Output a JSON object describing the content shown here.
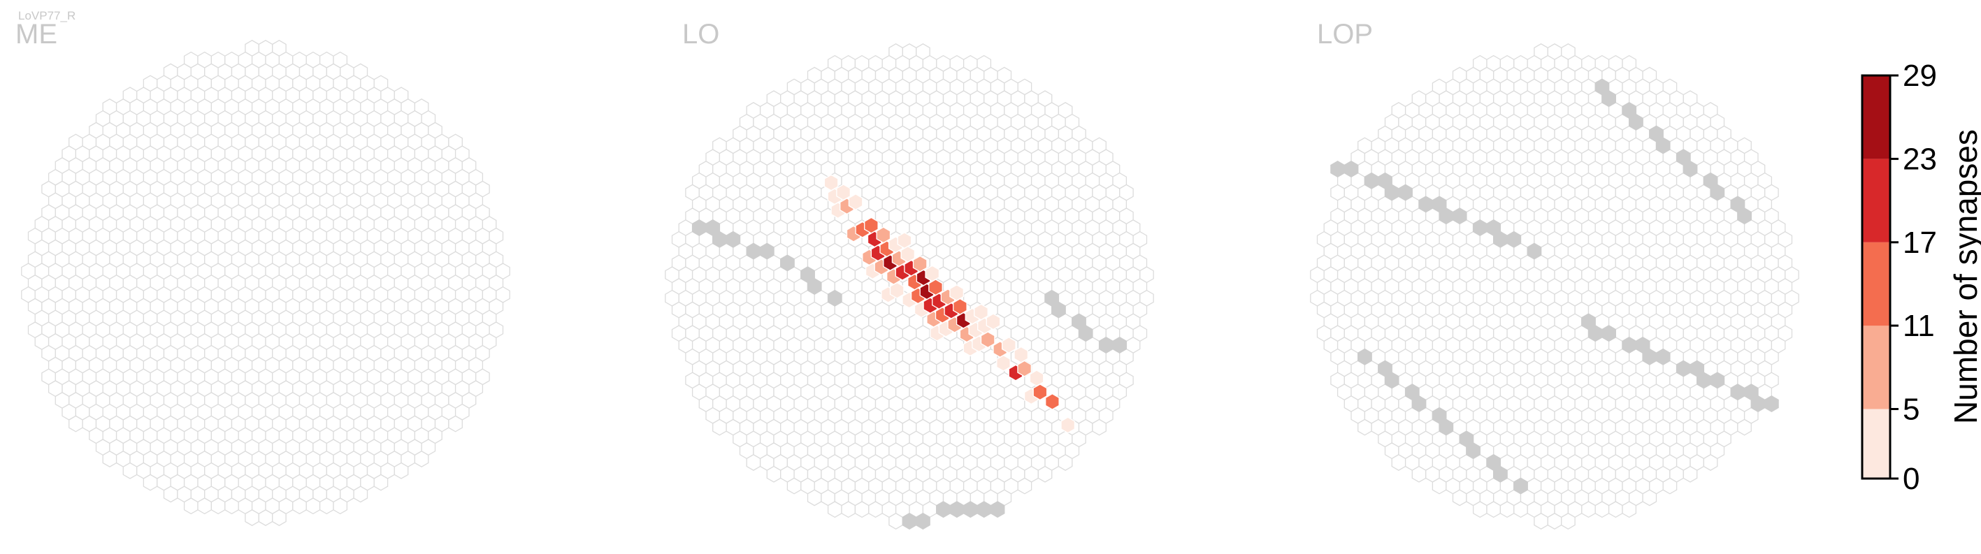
{
  "chart_data": {
    "type": "heatmap",
    "cell_type_label": "LoVP77_R",
    "panels": [
      {
        "title": "ME",
        "counts": [],
        "boundary": []
      },
      {
        "title": "LO",
        "counts": [
          [
            -2,
            4,
            2
          ],
          [
            -1,
            4,
            4
          ],
          [
            0,
            4,
            4
          ],
          [
            1,
            5,
            6
          ],
          [
            2,
            6,
            9
          ],
          [
            3,
            6,
            4
          ],
          [
            4,
            7,
            4
          ],
          [
            -2,
            5,
            3
          ],
          [
            -1,
            5,
            6
          ],
          [
            0,
            6,
            13
          ],
          [
            1,
            7,
            18
          ],
          [
            2,
            7,
            11
          ],
          [
            3,
            8,
            4
          ],
          [
            -2,
            6,
            4
          ],
          [
            -1,
            7,
            12
          ],
          [
            0,
            7,
            20
          ],
          [
            1,
            8,
            25
          ],
          [
            2,
            8,
            9
          ],
          [
            3,
            9,
            3
          ],
          [
            -1,
            8,
            9
          ],
          [
            0,
            8,
            16
          ],
          [
            1,
            9,
            22
          ],
          [
            2,
            10,
            13
          ],
          [
            3,
            10,
            3
          ],
          [
            4,
            11,
            2
          ],
          [
            -1,
            9,
            5
          ],
          [
            0,
            9,
            11
          ],
          [
            1,
            10,
            14
          ],
          [
            2,
            11,
            20
          ],
          [
            3,
            11,
            6
          ],
          [
            -1,
            10,
            3
          ],
          [
            0,
            10,
            18
          ],
          [
            1,
            11,
            27
          ],
          [
            2,
            12,
            13
          ],
          [
            3,
            12,
            5
          ],
          [
            -2,
            10,
            2
          ],
          [
            -1,
            11,
            8
          ],
          [
            0,
            11,
            26
          ],
          [
            1,
            12,
            22
          ],
          [
            2,
            13,
            8
          ],
          [
            -1,
            12,
            4
          ],
          [
            0,
            12,
            14
          ],
          [
            1,
            13,
            21
          ],
          [
            2,
            14,
            7
          ],
          [
            3,
            14,
            3
          ],
          [
            0,
            13,
            9
          ],
          [
            1,
            14,
            24
          ],
          [
            2,
            15,
            5
          ],
          [
            -1,
            14,
            4
          ],
          [
            0,
            14,
            12
          ],
          [
            1,
            15,
            3
          ],
          [
            0,
            15,
            3
          ],
          [
            1,
            16,
            6
          ],
          [
            2,
            17,
            4
          ],
          [
            -1,
            16,
            2
          ],
          [
            0,
            16,
            5
          ],
          [
            1,
            17,
            9
          ],
          [
            2,
            18,
            18
          ],
          [
            3,
            19,
            4
          ],
          [
            -1,
            17,
            3
          ],
          [
            0,
            18,
            5
          ],
          [
            1,
            19,
            7
          ],
          [
            2,
            20,
            15
          ],
          [
            0,
            19,
            3
          ],
          [
            1,
            20,
            4
          ],
          [
            2,
            21,
            12
          ],
          [
            3,
            22,
            4
          ]
        ],
        "boundary": [
          [
            -16,
            -5
          ],
          [
            -15,
            -5
          ],
          [
            -14,
            -4
          ],
          [
            -13,
            -4
          ],
          [
            -12,
            -3
          ],
          [
            -11,
            -3
          ],
          [
            -9,
            -2
          ],
          [
            -8,
            -1
          ],
          [
            -7,
            0
          ],
          [
            -6,
            1
          ],
          [
            15,
            5
          ],
          [
            14,
            5
          ],
          [
            13,
            4
          ],
          [
            12,
            3
          ],
          [
            11,
            2
          ],
          [
            10,
            1
          ],
          [
            6,
            19
          ],
          [
            5,
            19
          ],
          [
            4,
            19
          ],
          [
            3,
            19
          ],
          [
            2,
            19
          ],
          [
            1,
            20
          ],
          [
            0,
            20
          ]
        ]
      },
      {
        "title": "LOP",
        "counts": [],
        "boundary": [
          [
            -16,
            -10
          ],
          [
            -15,
            -10
          ],
          [
            -14,
            -9
          ],
          [
            -13,
            -9
          ],
          [
            -12,
            -8
          ],
          [
            -11,
            -8
          ],
          [
            -10,
            -7
          ],
          [
            -9,
            -7
          ],
          [
            -8,
            -6
          ],
          [
            -7,
            -6
          ],
          [
            -6,
            -5
          ],
          [
            -5,
            -5
          ],
          [
            -4,
            -4
          ],
          [
            -3,
            -4
          ],
          [
            -2,
            -3
          ],
          [
            16,
            10
          ],
          [
            15,
            10
          ],
          [
            14,
            9
          ],
          [
            13,
            9
          ],
          [
            12,
            8
          ],
          [
            11,
            8
          ],
          [
            10,
            7
          ],
          [
            9,
            7
          ],
          [
            8,
            6
          ],
          [
            7,
            6
          ],
          [
            6,
            5
          ],
          [
            5,
            5
          ],
          [
            4,
            4
          ],
          [
            3,
            4
          ],
          [
            2,
            3
          ],
          [
            -14,
            6
          ],
          [
            -13,
            7
          ],
          [
            -12,
            8
          ],
          [
            -11,
            9
          ],
          [
            -10,
            10
          ],
          [
            -9,
            11
          ],
          [
            -8,
            12
          ],
          [
            -7,
            13
          ],
          [
            14,
            -6
          ],
          [
            13,
            -7
          ],
          [
            12,
            -8
          ],
          [
            11,
            -9
          ],
          [
            10,
            -10
          ],
          [
            9,
            -11
          ],
          [
            8,
            -12
          ],
          [
            7,
            -13
          ],
          [
            -6,
            14
          ],
          [
            -5,
            15
          ],
          [
            -4,
            16
          ],
          [
            -3,
            17
          ],
          [
            6,
            -14
          ],
          [
            5,
            -15
          ],
          [
            4,
            -16
          ],
          [
            3,
            -17
          ]
        ]
      }
    ],
    "colorbar": {
      "label": "Number of synapses",
      "ticks": [
        0,
        5,
        11,
        17,
        23,
        29
      ],
      "vmin": 0,
      "vmax": 29,
      "colors": [
        "#fde8df",
        "#f9ac92",
        "#f46d4f",
        "#d8282a",
        "#a50f15"
      ]
    },
    "empty_cell_color": "#ffffff",
    "empty_cell_stroke": "#dcdcdc",
    "boundary_cell_color": "#cccccc"
  }
}
